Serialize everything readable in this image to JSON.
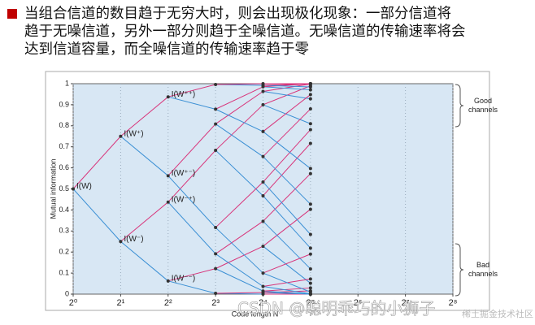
{
  "header": {
    "lines": [
      "当组合信道的数目趋于无穷大时，则会出现极化现象：一部分信道将",
      "趋于无噪信道，另外一部分则趋于全噪信道。无噪信道的传输速率将会",
      "达到信道容量，而全噪信道的传输速率趋于零"
    ]
  },
  "chart_data": {
    "type": "polarization",
    "xlabel": "Code length N",
    "ylabel": "Mutual information",
    "x": [
      1,
      2,
      4,
      8,
      16,
      32
    ],
    "levels": [
      [
        0.5
      ],
      [
        0.25,
        0.75
      ],
      [
        0.0625,
        0.4375,
        0.5625,
        0.9375
      ],
      [
        0.0039,
        0.1211,
        0.1914,
        0.6836,
        0.3164,
        0.8086,
        0.8789,
        0.9961
      ],
      [
        0.0,
        0.0078,
        0.0147,
        0.2275,
        0.0366,
        0.3462,
        0.4673,
        0.8999,
        0.1001,
        0.5327,
        0.6538,
        0.9634,
        0.7725,
        0.9853,
        0.9922,
        1.0
      ],
      [
        0.0,
        0.0,
        0.0001,
        0.0155,
        0.0002,
        0.0292,
        0.0518,
        0.4032,
        0.0013,
        0.0719,
        0.1199,
        0.5725,
        0.2184,
        0.7162,
        0.8098,
        0.99,
        0.01,
        0.1902,
        0.2838,
        0.7816,
        0.4275,
        0.8801,
        0.9281,
        0.9987,
        0.5968,
        0.9482,
        0.9708,
        0.9998,
        0.9845,
        0.9999,
        1.0,
        1.0
      ]
    ],
    "node_labels": [
      [
        "I(W)"
      ],
      [
        "I(W⁻)",
        "I(W⁺)"
      ],
      [
        "I(W⁻⁻)",
        "I(W⁻⁺)",
        "I(W⁺⁻)",
        "I(W⁺⁺)"
      ]
    ],
    "edge_colors": [
      "#3a8fd4",
      "#d8347a"
    ],
    "plot_color": "#d8e7f4",
    "xscale": "log2",
    "xlim": [
      1,
      256
    ],
    "xticks": [
      {
        "value": 1,
        "label": "2⁰"
      },
      {
        "value": 2,
        "label": "2¹"
      },
      {
        "value": 4,
        "label": "2²"
      },
      {
        "value": 8,
        "label": "2³"
      },
      {
        "value": 16,
        "label": "2⁴"
      },
      {
        "value": 32,
        "label": "2⁵"
      },
      {
        "value": 64,
        "label": "2⁶"
      },
      {
        "value": 128,
        "label": "2⁷"
      },
      {
        "value": 256,
        "label": "2⁸"
      }
    ],
    "ylim": [
      0,
      1
    ],
    "yticks": [
      0,
      0.1,
      0.2,
      0.3,
      0.4,
      0.5,
      0.6,
      0.7,
      0.8,
      0.9,
      1
    ],
    "braces": [
      "Good channels",
      "Bad channels"
    ]
  },
  "watermark": {
    "main": "CSDN @聪明乖巧的小狮子",
    "sub": "稀土掘金技术社区"
  }
}
